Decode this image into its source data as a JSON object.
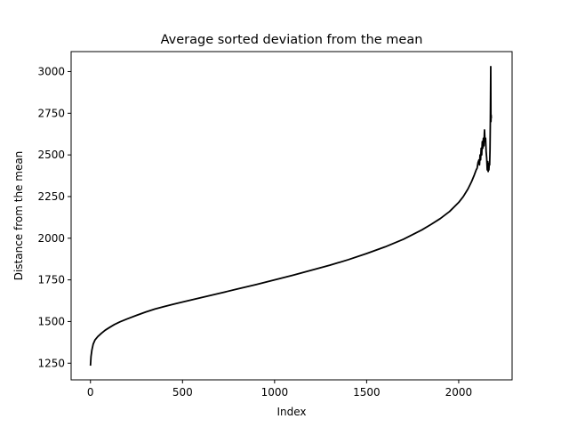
{
  "chart_data": {
    "type": "line",
    "title": "Average sorted deviation from the mean",
    "xlabel": "Index",
    "ylabel": "Distance from the  mean",
    "xlim": [
      -105,
      2290
    ],
    "ylim": [
      1150,
      3120
    ],
    "xticks": [
      0,
      500,
      1000,
      1500,
      2000
    ],
    "xtick_labels": [
      "0",
      "500",
      "1000",
      "1500",
      "2000"
    ],
    "yticks": [
      1250,
      1500,
      1750,
      2000,
      2250,
      2500,
      2750,
      3000
    ],
    "ytick_labels": [
      "1250",
      "1500",
      "1750",
      "2000",
      "2250",
      "2500",
      "2750",
      "3000"
    ],
    "grid": false,
    "series": [
      {
        "color": "#000000",
        "x": [
          0,
          3,
          8,
          15,
          25,
          40,
          60,
          80,
          100,
          130,
          160,
          200,
          250,
          300,
          350,
          400,
          450,
          500,
          600,
          700,
          800,
          900,
          1000,
          1100,
          1200,
          1300,
          1400,
          1500,
          1600,
          1700,
          1800,
          1850,
          1900,
          1950,
          2000,
          2025,
          2050,
          2070,
          2085,
          2095,
          2100,
          2105,
          2110,
          2113,
          2116,
          2119,
          2122,
          2125,
          2128,
          2131,
          2134,
          2137,
          2140,
          2143,
          2146,
          2149,
          2152,
          2155,
          2158,
          2160,
          2162,
          2164,
          2166,
          2168,
          2170,
          2172,
          2174,
          2175,
          2176,
          2177
        ],
        "y": [
          1235,
          1290,
          1330,
          1365,
          1390,
          1410,
          1430,
          1448,
          1462,
          1482,
          1498,
          1516,
          1537,
          1557,
          1575,
          1590,
          1604,
          1617,
          1643,
          1669,
          1696,
          1722,
          1750,
          1778,
          1808,
          1838,
          1871,
          1908,
          1948,
          1994,
          2050,
          2083,
          2118,
          2160,
          2215,
          2250,
          2295,
          2340,
          2380,
          2410,
          2420,
          2455,
          2470,
          2440,
          2500,
          2470,
          2540,
          2500,
          2580,
          2540,
          2600,
          2555,
          2650,
          2580,
          2600,
          2520,
          2480,
          2410,
          2460,
          2400,
          2430,
          2410,
          2450,
          2440,
          2530,
          2720,
          3030,
          2700,
          2740,
          2720
        ]
      }
    ]
  }
}
